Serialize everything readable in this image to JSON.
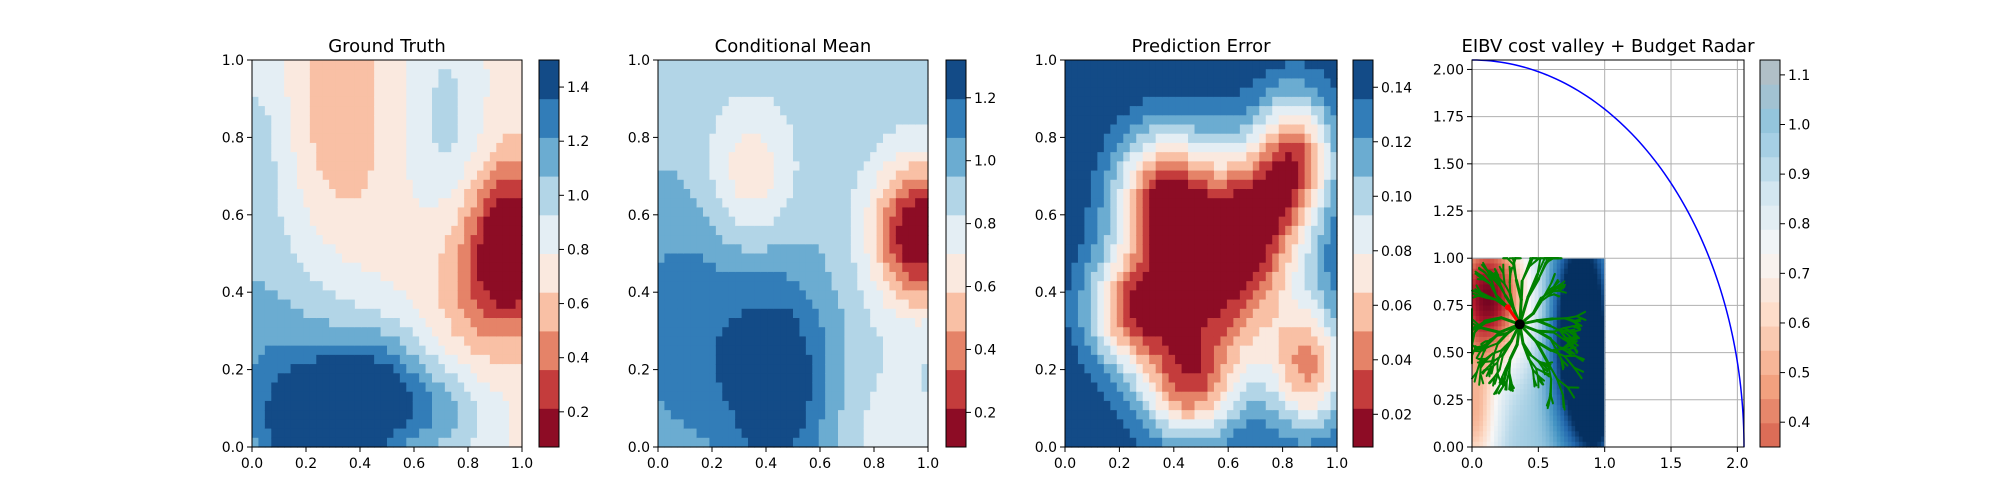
{
  "colors": {
    "rdbu": [
      "#67001f",
      "#b2182b",
      "#d6604d",
      "#f4a582",
      "#fddbc7",
      "#f7f7f7",
      "#d1e5f0",
      "#92c5de",
      "#4393c3",
      "#2166ac",
      "#053061"
    ],
    "blues": [
      "#f7fbff",
      "#deebf7",
      "#c6dbef",
      "#9ecae1",
      "#6baed6",
      "#4292c6",
      "#2171b5",
      "#08519c",
      "#08306b"
    ],
    "tree": "#008000",
    "radar": "#0000ff",
    "agent": "#000000",
    "target": "#ff0000"
  },
  "chart_data": [
    {
      "type": "heatmap",
      "title": "Ground Truth",
      "xlim": [
        0,
        1
      ],
      "ylim": [
        0,
        1
      ],
      "xticks": [
        "0.0",
        "0.2",
        "0.4",
        "0.6",
        "0.8",
        "1.0"
      ],
      "yticks": [
        "0.0",
        "0.2",
        "0.4",
        "0.6",
        "0.8",
        "1.0"
      ],
      "colorbar": {
        "range": [
          0.07,
          1.5
        ],
        "ticks": [
          0.2,
          0.4,
          0.6,
          0.8,
          1.0,
          1.2,
          1.4
        ],
        "tick_labels": [
          "0.2",
          "0.4",
          "0.6",
          "0.8",
          "1.0",
          "1.2",
          "1.4"
        ],
        "levels": 10
      },
      "field": {
        "base": 0.72,
        "bumps": [
          {
            "x": 0.96,
            "y": 0.52,
            "amp": -0.75,
            "sx": 0.1,
            "sy": 0.14
          },
          {
            "x": 0.82,
            "y": 0.42,
            "amp": -0.2,
            "sx": 0.12,
            "sy": 0.16
          },
          {
            "x": 0.33,
            "y": 0.86,
            "amp": -0.22,
            "sx": 0.1,
            "sy": 0.2
          },
          {
            "x": 0.28,
            "y": 0.05,
            "amp": 0.75,
            "sx": 0.15,
            "sy": 0.11
          },
          {
            "x": 0.46,
            "y": 0.16,
            "amp": 0.5,
            "sx": 0.14,
            "sy": 0.12
          },
          {
            "x": 0.05,
            "y": 0.2,
            "amp": 0.45,
            "sx": 0.22,
            "sy": 0.25
          },
          {
            "x": 0.7,
            "y": 0.08,
            "amp": 0.35,
            "sx": 0.15,
            "sy": 0.1
          },
          {
            "x": 0.72,
            "y": 0.85,
            "amp": 0.25,
            "sx": 0.1,
            "sy": 0.2
          },
          {
            "x": 0.0,
            "y": 0.78,
            "amp": 0.25,
            "sx": 0.1,
            "sy": 0.2
          }
        ]
      }
    },
    {
      "type": "heatmap",
      "title": "Conditional Mean",
      "xlim": [
        0,
        1
      ],
      "ylim": [
        0,
        1
      ],
      "xticks": [
        "0.0",
        "0.2",
        "0.4",
        "0.6",
        "0.8",
        "1.0"
      ],
      "yticks": [
        "0.0",
        "0.2",
        "0.4",
        "0.6",
        "0.8",
        "1.0"
      ],
      "colorbar": {
        "range": [
          0.09,
          1.32
        ],
        "ticks": [
          0.2,
          0.4,
          0.6,
          0.8,
          1.0,
          1.2
        ],
        "tick_labels": [
          "0.2",
          "0.4",
          "0.6",
          "0.8",
          "1.0",
          "1.2"
        ],
        "levels": 10
      },
      "field": {
        "base": 0.9,
        "bumps": [
          {
            "x": 0.97,
            "y": 0.55,
            "amp": -0.85,
            "sx": 0.12,
            "sy": 0.13
          },
          {
            "x": 0.34,
            "y": 0.7,
            "amp": -0.3,
            "sx": 0.11,
            "sy": 0.13
          },
          {
            "x": 0.45,
            "y": 0.16,
            "amp": 0.42,
            "sx": 0.14,
            "sy": 0.2
          },
          {
            "x": 0.1,
            "y": 0.3,
            "amp": 0.25,
            "sx": 0.2,
            "sy": 0.25
          },
          {
            "x": 0.85,
            "y": 0.05,
            "amp": -0.12,
            "sx": 0.15,
            "sy": 0.15
          }
        ]
      }
    },
    {
      "type": "heatmap",
      "title": "Prediction Error",
      "xlim": [
        0,
        1
      ],
      "ylim": [
        0,
        1
      ],
      "xticks": [
        "0.0",
        "0.2",
        "0.4",
        "0.6",
        "0.8",
        "1.0"
      ],
      "yticks": [
        "0.0",
        "0.2",
        "0.4",
        "0.6",
        "0.8",
        "1.0"
      ],
      "colorbar": {
        "range": [
          0.008,
          0.15
        ],
        "ticks": [
          0.02,
          0.04,
          0.06,
          0.08,
          0.1,
          0.12,
          0.14
        ],
        "tick_labels": [
          "0.02",
          "0.04",
          "0.06",
          "0.08",
          "0.10",
          "0.12",
          "0.14"
        ],
        "levels": 10
      },
      "field": {
        "base": 0.15,
        "bumps": [
          {
            "x": 0.55,
            "y": 0.45,
            "amp": -0.13,
            "sx": 0.2,
            "sy": 0.2
          },
          {
            "x": 0.35,
            "y": 0.65,
            "amp": -0.09,
            "sx": 0.12,
            "sy": 0.12
          },
          {
            "x": 0.85,
            "y": 0.75,
            "amp": -0.1,
            "sx": 0.1,
            "sy": 0.12
          },
          {
            "x": 0.25,
            "y": 0.35,
            "amp": -0.09,
            "sx": 0.12,
            "sy": 0.1
          },
          {
            "x": 0.9,
            "y": 0.2,
            "amp": -0.09,
            "sx": 0.1,
            "sy": 0.12
          },
          {
            "x": 0.45,
            "y": 0.15,
            "amp": -0.08,
            "sx": 0.12,
            "sy": 0.1
          },
          {
            "x": 0.7,
            "y": 0.6,
            "amp": -0.06,
            "sx": 0.12,
            "sy": 0.12
          }
        ]
      }
    },
    {
      "type": "heatmap",
      "title": "EIBV cost valley + Budget Radar",
      "xlim": [
        0,
        2.05
      ],
      "ylim": [
        0,
        2.05
      ],
      "xticks": [
        "0.0",
        "0.5",
        "1.0",
        "1.5",
        "2.0"
      ],
      "yticks": [
        "0.00",
        "0.25",
        "0.50",
        "0.75",
        "1.00",
        "1.25",
        "1.50",
        "1.75",
        "2.00"
      ],
      "grid": true,
      "colorbar": {
        "range": [
          0.35,
          1.13
        ],
        "ticks": [
          0.4,
          0.5,
          0.6,
          0.7,
          0.8,
          0.9,
          1.0,
          1.1
        ],
        "tick_labels": [
          "0.4",
          "0.5",
          "0.6",
          "0.7",
          "0.8",
          "0.9",
          "1.0",
          "1.1"
        ],
        "levels": 16
      },
      "field_extent": [
        0,
        1,
        0,
        1
      ],
      "agent": {
        "x": 0.36,
        "y": 0.65
      },
      "target": {
        "x": 0.27,
        "y": 0.74
      },
      "budget_radar": {
        "center": [
          0,
          0
        ],
        "radius": 2.05
      }
    }
  ]
}
